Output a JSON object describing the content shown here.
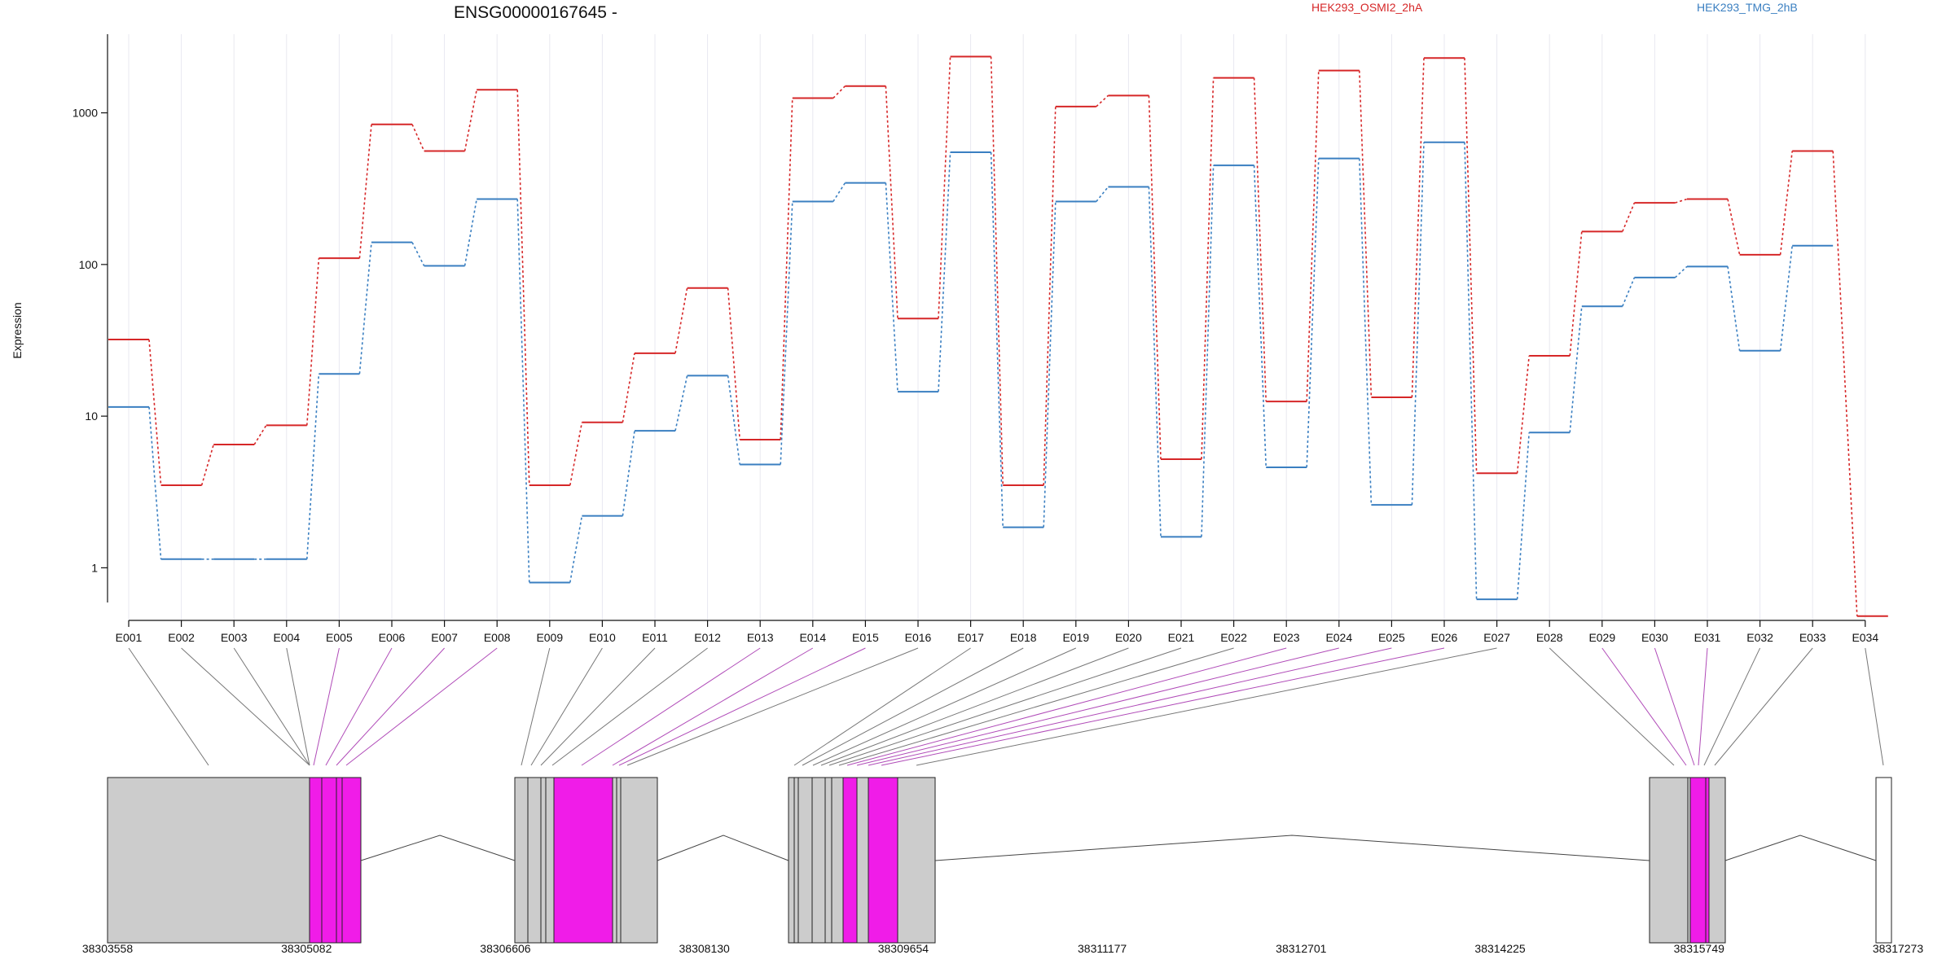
{
  "title": "ENSG00000167645 -",
  "ylabel": "Expression",
  "colors": {
    "exon_highlight": "#f01ce8",
    "exon_normal": "#cccccc",
    "grid": "#e8e8f0"
  },
  "chart_data": {
    "type": "line",
    "ylabel": "Expression",
    "yscale": "log",
    "ylim": [
      0.45,
      3300
    ],
    "yticks": [
      1,
      10,
      100,
      1000
    ],
    "grid": "vertical only",
    "legend": "top, inline",
    "categories": [
      "E001",
      "E002",
      "E003",
      "E004",
      "E005",
      "E006",
      "E007",
      "E008",
      "E009",
      "E010",
      "E011",
      "E012",
      "E013",
      "E014",
      "E015",
      "E016",
      "E017",
      "E018",
      "E019",
      "E020",
      "E021",
      "E022",
      "E023",
      "E024",
      "E025",
      "E026",
      "E027",
      "E028",
      "E029",
      "E030",
      "E031",
      "E032",
      "E033",
      "E034"
    ],
    "series": [
      {
        "name": "HEK293_OSMI2_2hA",
        "color": "#d62728",
        "values": [
          32,
          3.5,
          6.5,
          8.7,
          110,
          840,
          560,
          1420,
          3.5,
          9.1,
          26,
          70,
          7,
          1250,
          1500,
          44,
          2350,
          3.5,
          1100,
          1300,
          5.2,
          1700,
          12.5,
          1900,
          13.3,
          2300,
          4.2,
          25,
          165,
          255,
          270,
          116,
          560,
          0.48
        ]
      },
      {
        "name": "HEK293_TMG_2hB",
        "color": "#3a7fc1",
        "values": [
          11.5,
          1.14,
          1.14,
          1.14,
          19,
          140,
          98,
          270,
          0.8,
          2.2,
          8,
          18.5,
          4.8,
          260,
          345,
          14.5,
          550,
          1.85,
          260,
          325,
          1.6,
          450,
          4.6,
          500,
          2.6,
          640,
          0.62,
          7.8,
          53,
          82,
          97,
          27,
          133,
          null
        ]
      }
    ]
  },
  "exon_highlighted": [
    false,
    false,
    false,
    false,
    true,
    true,
    true,
    true,
    false,
    false,
    false,
    false,
    true,
    true,
    true,
    false,
    false,
    false,
    false,
    false,
    false,
    false,
    true,
    true,
    true,
    true,
    false,
    false,
    true,
    true,
    true,
    false,
    false,
    false
  ],
  "gene_model": {
    "coordinate_labels": [
      "38303558",
      "38305082",
      "38306606",
      "38308130",
      "38309654",
      "38311177",
      "38312701",
      "38314225",
      "38315749",
      "38317273"
    ]
  }
}
